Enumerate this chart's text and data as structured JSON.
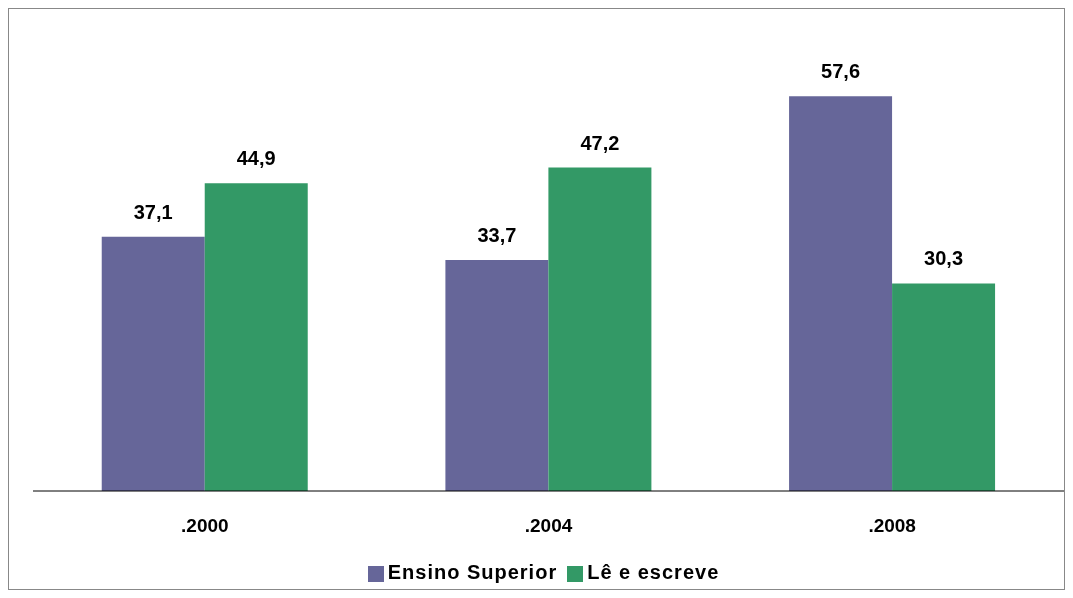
{
  "chart_data": {
    "type": "bar",
    "categories": [
      ".2000",
      ".2004",
      ".2008"
    ],
    "series": [
      {
        "name": "Ensino Superior",
        "color": "#666699",
        "values": [
          37.1,
          33.7,
          57.6
        ],
        "value_labels": [
          "37,1",
          "33,7",
          "57,6"
        ]
      },
      {
        "name": "Lê e escreve",
        "color": "#339966",
        "values": [
          44.9,
          47.2,
          30.3
        ],
        "value_labels": [
          "44,9",
          "47,2",
          "30,3"
        ]
      }
    ],
    "legend": "bottom",
    "grid": false
  }
}
